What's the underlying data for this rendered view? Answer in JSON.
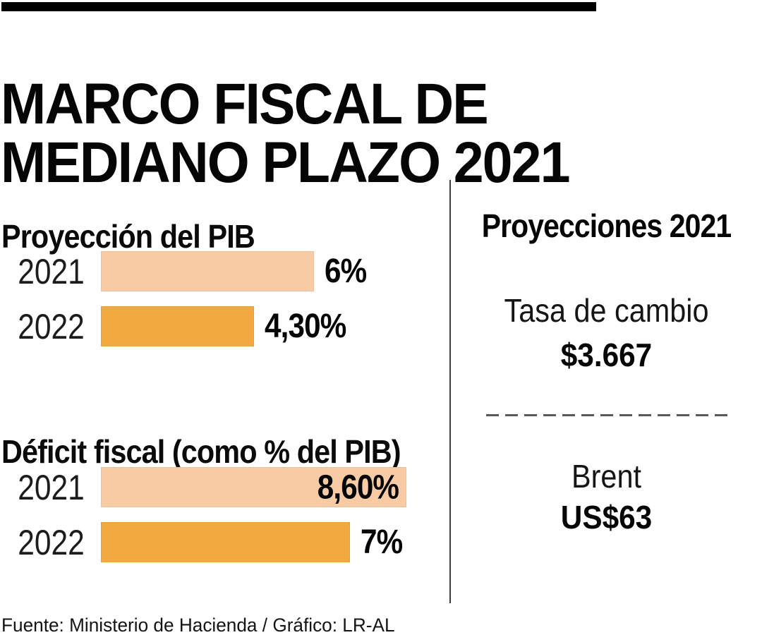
{
  "header": {
    "title_line1": "MARCO FISCAL DE",
    "title_line2": "MEDIANO PLAZO 2021"
  },
  "chart_data": [
    {
      "type": "bar",
      "orientation": "horizontal",
      "title": "Proyección del PIB",
      "categories": [
        "2021",
        "2022"
      ],
      "values": [
        6,
        4.3
      ],
      "value_labels": [
        "6%",
        "4,30%"
      ],
      "unit": "%",
      "xlim": [
        0,
        8.6
      ],
      "grid": false,
      "bar_colors": [
        "#F9CBA5",
        "#F4A842"
      ]
    },
    {
      "type": "bar",
      "orientation": "horizontal",
      "title": "Déficit fiscal (como % del PIB)",
      "categories": [
        "2021",
        "2022"
      ],
      "values": [
        8.6,
        7
      ],
      "value_labels": [
        "8,60%",
        "7%"
      ],
      "unit": "%",
      "xlim": [
        0,
        8.6
      ],
      "grid": false,
      "bar_colors": [
        "#F9CBA5",
        "#F4A842"
      ]
    }
  ],
  "side_panel": {
    "title": "Proyecciones 2021",
    "items": [
      {
        "label": "Tasa de cambio",
        "value": "$3.667"
      },
      {
        "label": "Brent",
        "value": "US$63"
      }
    ]
  },
  "footer": {
    "source": "Fuente: Ministerio de Hacienda / Gráfico: LR-AL"
  },
  "colors": {
    "bar_light": "#F9CBA5",
    "bar_dark": "#F4A842",
    "top_rule": "#000000",
    "divider": "#3d3d3d",
    "dashed_line": "#5a5a5a",
    "text": "#000000"
  }
}
